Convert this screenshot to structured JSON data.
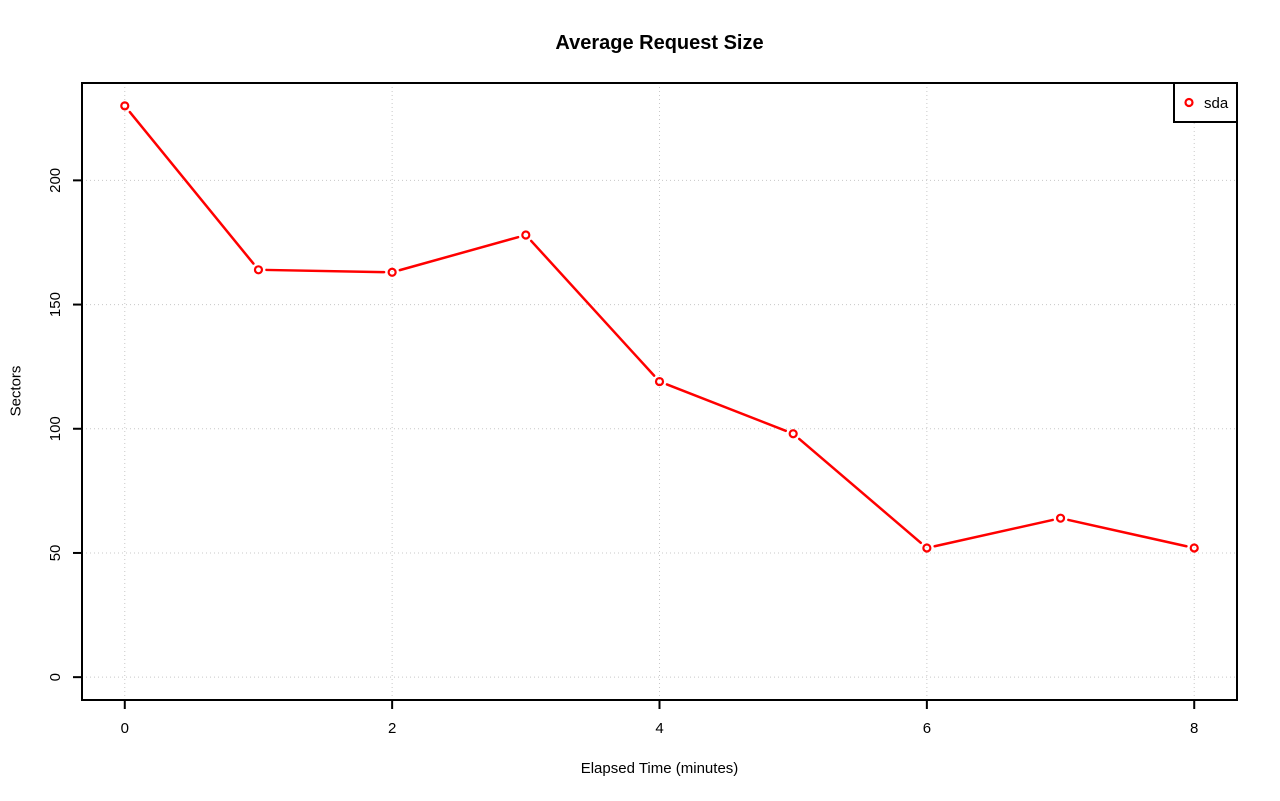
{
  "chart_data": {
    "type": "line",
    "title": "Average Request Size",
    "xlabel": "Elapsed Time (minutes)",
    "ylabel": "Sectors",
    "x": [
      0,
      1,
      2,
      3,
      4,
      5,
      6,
      7,
      8
    ],
    "series": [
      {
        "name": "sda",
        "color": "#ff0000",
        "marker": "open-circle",
        "values": [
          230,
          164,
          163,
          178,
          119,
          98,
          52,
          64,
          52
        ]
      }
    ],
    "xticks": [
      0,
      2,
      4,
      6,
      8
    ],
    "yticks": [
      0,
      50,
      100,
      150,
      200
    ],
    "xlim": [
      -0.32,
      8.32
    ],
    "ylim": [
      -9.2,
      239.2
    ],
    "grid": true,
    "grid_style": "dotted",
    "grid_color": "#c8c8c8",
    "axis_color": "#000000",
    "background_color": "#ffffff",
    "legend_position": "top-right"
  }
}
